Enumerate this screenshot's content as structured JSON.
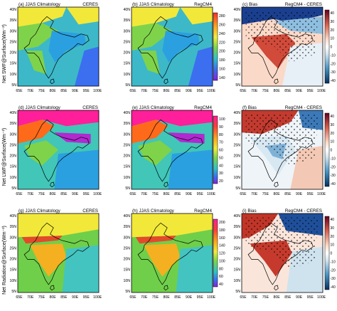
{
  "rows": [
    {
      "ylabel": "Net SWF@Surface(Wm⁻²)",
      "panels": [
        {
          "left": "(a) JJAS Climatology",
          "right": "CERES",
          "kind": "sw"
        },
        {
          "left": "(b) JJAS Climatology",
          "right": "RegCM4",
          "kind": "sw"
        },
        {
          "left": "(c) Bias",
          "right": "RegCM4 - CERES",
          "kind": "bias1"
        }
      ],
      "cbar_mid": [
        "280",
        "260",
        "240",
        "220",
        "200",
        "180",
        "160",
        "140"
      ],
      "cbar_bias": [
        "40",
        "30",
        "20",
        "10",
        "0",
        "-10",
        "-20",
        "-30",
        "-40"
      ]
    },
    {
      "ylabel": "Net LWF@Surface(Wm⁻²)",
      "panels": [
        {
          "left": "(d) JJAS Climatology",
          "right": "CERES",
          "kind": "lw"
        },
        {
          "left": "(e) JJAS Climatology",
          "right": "RegCM4",
          "kind": "lw"
        },
        {
          "left": "(f) Bias",
          "right": "RegCM4 - CERES",
          "kind": "bias2"
        }
      ],
      "cbar_mid": [
        "100",
        "90",
        "80",
        "70",
        "60",
        "50",
        "40",
        "30",
        "20"
      ],
      "cbar_bias": [
        "40",
        "30",
        "20",
        "10",
        "0",
        "-10",
        "-20",
        "-30",
        "-40"
      ]
    },
    {
      "ylabel": "Net Radiation@Surface(Wm⁻²)",
      "panels": [
        {
          "left": "(g) JJAS Climatology",
          "right": "CERES",
          "kind": "nr"
        },
        {
          "left": "(h) JJAS Climatology",
          "right": "RegCM4",
          "kind": "nr"
        },
        {
          "left": "(i) Bias",
          "right": "RegCM4 - CERES",
          "kind": "bias3"
        }
      ],
      "cbar_mid": [
        "200",
        "180",
        "160",
        "140",
        "120",
        "100",
        "80",
        "60",
        "40"
      ],
      "cbar_bias": [
        "40",
        "30",
        "20",
        "10",
        "0",
        "-10",
        "-20",
        "-30",
        "-40"
      ]
    }
  ],
  "lat_ticks": [
    "40N",
    "35N",
    "30N",
    "25N",
    "20N",
    "15N",
    "10N",
    "5N"
  ],
  "lon_ticks": [
    "65E",
    "70E",
    "75E",
    "80E",
    "85E",
    "90E",
    "95E",
    "100E"
  ]
}
